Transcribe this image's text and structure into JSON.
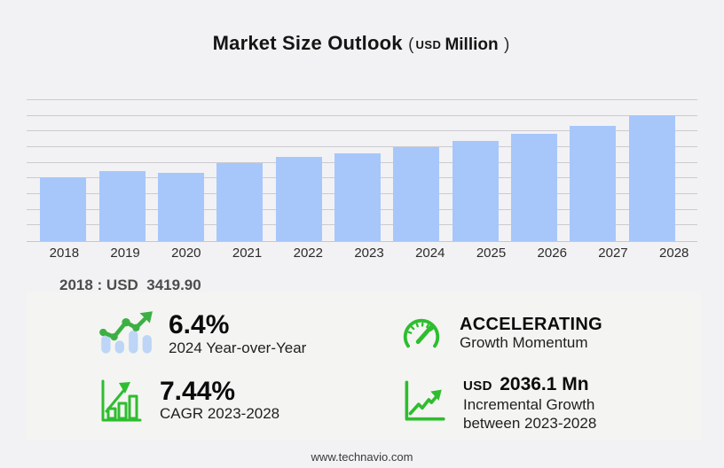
{
  "title": {
    "main": "Market Size Outlook",
    "paren_open": "(",
    "unit_small": "USD",
    "unit_big": "Million",
    "paren_close": ")"
  },
  "chart_data": {
    "type": "bar",
    "title": "Market Size Outlook (USD Million)",
    "xlabel": "",
    "ylabel": "",
    "categories": [
      "2018",
      "2019",
      "2020",
      "2021",
      "2022",
      "2023",
      "2024",
      "2025",
      "2026",
      "2027",
      "2028"
    ],
    "values": [
      3419.9,
      3740,
      3645,
      4185,
      4500,
      4718.4,
      5020.4,
      5360,
      5755,
      6170,
      6754.5
    ],
    "ylim": [
      0,
      7600
    ],
    "grid": true,
    "gridline_count": 9,
    "legend": "none",
    "bar_color": "#a7c7fb"
  },
  "note": {
    "text": "2018 : USD  3419.90"
  },
  "stats": [
    {
      "icon": "trend-bars-icon",
      "value": "6.4%",
      "label": "2024 Year-over-Year"
    },
    {
      "icon": "speedometer-icon",
      "value": "ACCELERATING",
      "label": "Growth Momentum"
    },
    {
      "icon": "bar-growth-icon",
      "value": "7.44%",
      "label": "CAGR 2023-2028"
    },
    {
      "icon": "line-growth-icon",
      "value_prefix": "USD",
      "value": "2036.1 Mn",
      "label": "Incremental Growth between 2023-2028"
    }
  ],
  "footer": {
    "url": "www.technavio.com"
  },
  "colors": {
    "page_bg": "#f2f2f4",
    "panel_bg": "#f4f4f2",
    "bar_blue": "#a7c7fb",
    "icon_bar_blue": "#bdd5f6",
    "grid_line": "#cbcbd0",
    "green": "#2ebd2e",
    "green_dark": "#3cb043"
  }
}
